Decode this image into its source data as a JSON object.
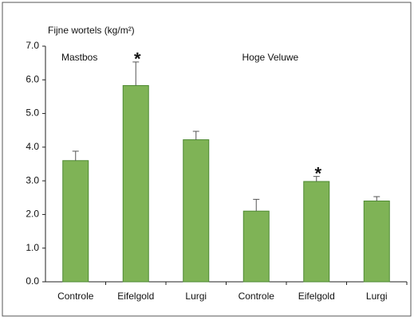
{
  "chart_data": {
    "type": "bar",
    "title": "Fijne wortels (kg/m²)",
    "groups": [
      "Mastbos",
      "Hoge Veluwe"
    ],
    "categories": [
      "Controle",
      "Eifelgold",
      "Lurgi",
      "Controle",
      "Eifelgold",
      "Lurgi"
    ],
    "values": [
      3.6,
      5.83,
      4.22,
      2.1,
      2.98,
      2.4
    ],
    "errors": [
      0.28,
      0.7,
      0.25,
      0.35,
      0.15,
      0.13
    ],
    "markers": [
      null,
      "*",
      null,
      null,
      "*",
      null
    ],
    "color": "#7fb356",
    "ylim": [
      0,
      7
    ],
    "yticks": [
      {
        "value": 0,
        "label": "0.0"
      },
      {
        "value": 1,
        "label": "1.0"
      },
      {
        "value": 2,
        "label": "2.0"
      },
      {
        "value": 3,
        "label": "3.0"
      },
      {
        "value": 4,
        "label": "4.0"
      },
      {
        "value": 5,
        "label": "5.0"
      },
      {
        "value": 6,
        "label": "6.0"
      },
      {
        "value": 7,
        "label": "7.0"
      }
    ],
    "grid": false
  }
}
